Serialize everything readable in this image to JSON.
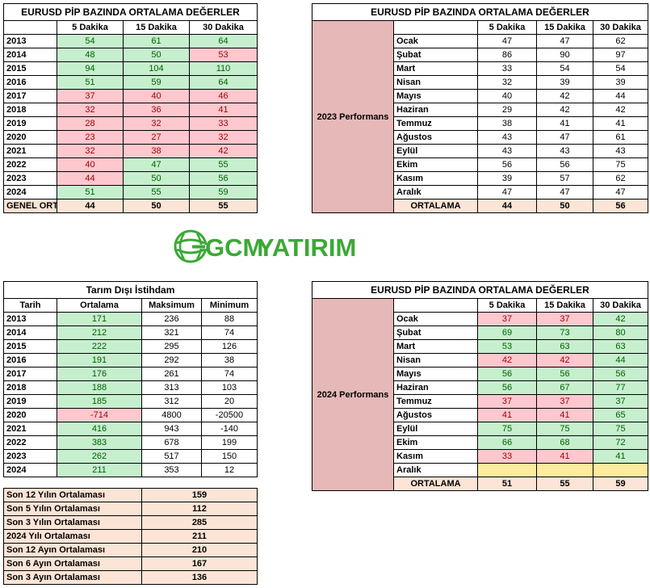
{
  "t1": {
    "title": "EURUSD  PİP BAZINDA ORTALAMA DEĞERLER",
    "headers": [
      "",
      "5 Dakika",
      "15 Dakika",
      "30 Dakika"
    ],
    "rows": [
      {
        "year": "2013",
        "v": [
          "54",
          "61",
          "64"
        ],
        "c": [
          "g",
          "g",
          "g"
        ]
      },
      {
        "year": "2014",
        "v": [
          "48",
          "50",
          "53"
        ],
        "c": [
          "g",
          "g",
          "r"
        ]
      },
      {
        "year": "2015",
        "v": [
          "94",
          "104",
          "110"
        ],
        "c": [
          "g",
          "g",
          "g"
        ]
      },
      {
        "year": "2016",
        "v": [
          "51",
          "59",
          "64"
        ],
        "c": [
          "g",
          "g",
          "g"
        ]
      },
      {
        "year": "2017",
        "v": [
          "37",
          "40",
          "46"
        ],
        "c": [
          "r",
          "r",
          "r"
        ]
      },
      {
        "year": "2018",
        "v": [
          "32",
          "36",
          "41"
        ],
        "c": [
          "r",
          "r",
          "r"
        ]
      },
      {
        "year": "2019",
        "v": [
          "28",
          "32",
          "33"
        ],
        "c": [
          "r",
          "r",
          "r"
        ]
      },
      {
        "year": "2020",
        "v": [
          "23",
          "27",
          "32"
        ],
        "c": [
          "r",
          "r",
          "r"
        ]
      },
      {
        "year": "2021",
        "v": [
          "32",
          "38",
          "42"
        ],
        "c": [
          "r",
          "r",
          "r"
        ]
      },
      {
        "year": "2022",
        "v": [
          "40",
          "47",
          "55"
        ],
        "c": [
          "r",
          "g",
          "g"
        ]
      },
      {
        "year": "2023",
        "v": [
          "44",
          "50",
          "56"
        ],
        "c": [
          "r",
          "g",
          "g"
        ]
      },
      {
        "year": "2024",
        "v": [
          "51",
          "55",
          "59"
        ],
        "c": [
          "g",
          "g",
          "g"
        ]
      }
    ],
    "footer": {
      "label": "GENEL ORT",
      "v": [
        "44",
        "50",
        "55"
      ]
    }
  },
  "t2": {
    "title": "EURUSD  PİP BAZINDA ORTALAMA DEĞERLER",
    "headers": [
      "5 Dakika",
      "15 Dakika",
      "30 Dakika"
    ],
    "group_label": "2023 Performans",
    "rows": [
      {
        "month": "Ocak",
        "v": [
          "47",
          "47",
          "62"
        ]
      },
      {
        "month": "Şubat",
        "v": [
          "86",
          "90",
          "97"
        ]
      },
      {
        "month": "Mart",
        "v": [
          "33",
          "54",
          "54"
        ]
      },
      {
        "month": "Nisan",
        "v": [
          "32",
          "39",
          "39"
        ]
      },
      {
        "month": "Mayıs",
        "v": [
          "40",
          "42",
          "44"
        ]
      },
      {
        "month": "Haziran",
        "v": [
          "29",
          "42",
          "42"
        ]
      },
      {
        "month": "Temmuz",
        "v": [
          "38",
          "41",
          "41"
        ]
      },
      {
        "month": "Ağustos",
        "v": [
          "43",
          "47",
          "61"
        ]
      },
      {
        "month": "Eylül",
        "v": [
          "43",
          "43",
          "43"
        ]
      },
      {
        "month": "Ekim",
        "v": [
          "56",
          "56",
          "75"
        ]
      },
      {
        "month": "Kasım",
        "v": [
          "39",
          "57",
          "62"
        ]
      },
      {
        "month": "Aralık",
        "v": [
          "47",
          "47",
          "47"
        ]
      }
    ],
    "footer": {
      "label": "ORTALAMA",
      "v": [
        "44",
        "50",
        "56"
      ]
    }
  },
  "logo": {
    "part1": "GCM",
    "part2": "YATIRIM",
    "green": "#3aa935",
    "blue": "#1f5a8a"
  },
  "t3": {
    "title": "Tarım Dışı İstihdam",
    "headers": [
      "Tarih",
      "Ortalama",
      "Maksimum",
      "Minimum"
    ],
    "rows": [
      {
        "year": "2013",
        "avg": "171",
        "max": "236",
        "min": "88",
        "c": "g"
      },
      {
        "year": "2014",
        "avg": "212",
        "max": "321",
        "min": "74",
        "c": "g"
      },
      {
        "year": "2015",
        "avg": "222",
        "max": "295",
        "min": "126",
        "c": "g"
      },
      {
        "year": "2016",
        "avg": "191",
        "max": "292",
        "min": "38",
        "c": "g"
      },
      {
        "year": "2017",
        "avg": "176",
        "max": "261",
        "min": "74",
        "c": "g"
      },
      {
        "year": "2018",
        "avg": "188",
        "max": "313",
        "min": "103",
        "c": "g"
      },
      {
        "year": "2019",
        "avg": "185",
        "max": "312",
        "min": "20",
        "c": "g"
      },
      {
        "year": "2020",
        "avg": "-714",
        "max": "4800",
        "min": "-20500",
        "c": "r"
      },
      {
        "year": "2021",
        "avg": "416",
        "max": "943",
        "min": "-140",
        "c": "g"
      },
      {
        "year": "2022",
        "avg": "383",
        "max": "678",
        "min": "199",
        "c": "g"
      },
      {
        "year": "2023",
        "avg": "262",
        "max": "517",
        "min": "150",
        "c": "g"
      },
      {
        "year": "2024",
        "avg": "211",
        "max": "353",
        "min": "12",
        "c": "g"
      }
    ]
  },
  "t4": {
    "title": "EURUSD  PİP BAZINDA ORTALAMA DEĞERLER",
    "headers": [
      "5 Dakika",
      "15 Dakika",
      "30 Dakika"
    ],
    "group_label": "2024 Performans",
    "rows": [
      {
        "month": "Ocak",
        "v": [
          "37",
          "37",
          "42"
        ],
        "c": [
          "r",
          "r",
          "g"
        ]
      },
      {
        "month": "Şubat",
        "v": [
          "69",
          "73",
          "80"
        ],
        "c": [
          "g",
          "g",
          "g"
        ]
      },
      {
        "month": "Mart",
        "v": [
          "53",
          "63",
          "63"
        ],
        "c": [
          "g",
          "g",
          "g"
        ]
      },
      {
        "month": "Nisan",
        "v": [
          "42",
          "42",
          "44"
        ],
        "c": [
          "r",
          "r",
          "g"
        ]
      },
      {
        "month": "Mayıs",
        "v": [
          "56",
          "56",
          "56"
        ],
        "c": [
          "g",
          "g",
          "g"
        ]
      },
      {
        "month": "Haziran",
        "v": [
          "56",
          "67",
          "77"
        ],
        "c": [
          "g",
          "g",
          "g"
        ]
      },
      {
        "month": "Temmuz",
        "v": [
          "37",
          "37",
          "37"
        ],
        "c": [
          "r",
          "r",
          "g"
        ]
      },
      {
        "month": "Ağustos",
        "v": [
          "41",
          "41",
          "65"
        ],
        "c": [
          "r",
          "r",
          "g"
        ]
      },
      {
        "month": "Eylül",
        "v": [
          "75",
          "75",
          "75"
        ],
        "c": [
          "g",
          "g",
          "g"
        ]
      },
      {
        "month": "Ekim",
        "v": [
          "66",
          "68",
          "72"
        ],
        "c": [
          "g",
          "g",
          "g"
        ]
      },
      {
        "month": "Kasım",
        "v": [
          "33",
          "41",
          "41"
        ],
        "c": [
          "r",
          "r",
          "g"
        ]
      },
      {
        "month": "Aralık",
        "v": [
          "",
          "",
          ""
        ],
        "c": [
          "y",
          "y",
          "y"
        ]
      }
    ],
    "footer": {
      "label": "ORTALAMA",
      "v": [
        "51",
        "55",
        "59"
      ]
    }
  },
  "t5": {
    "rows": [
      {
        "label": "Son 12 Yılın Ortalaması",
        "value": "159"
      },
      {
        "label": "Son 5 Yılın Ortalaması",
        "value": "112"
      },
      {
        "label": "Son 3 Yılın Ortalaması",
        "value": "285"
      },
      {
        "label": "2024 Yılı Ortalaması",
        "value": "211"
      },
      {
        "label": "Son 12 Ayın Ortalaması",
        "value": "210"
      },
      {
        "label": "Son 6 Ayın Ortalaması",
        "value": "167"
      },
      {
        "label": "Son 3 Ayın Ortalaması",
        "value": "136"
      }
    ]
  }
}
